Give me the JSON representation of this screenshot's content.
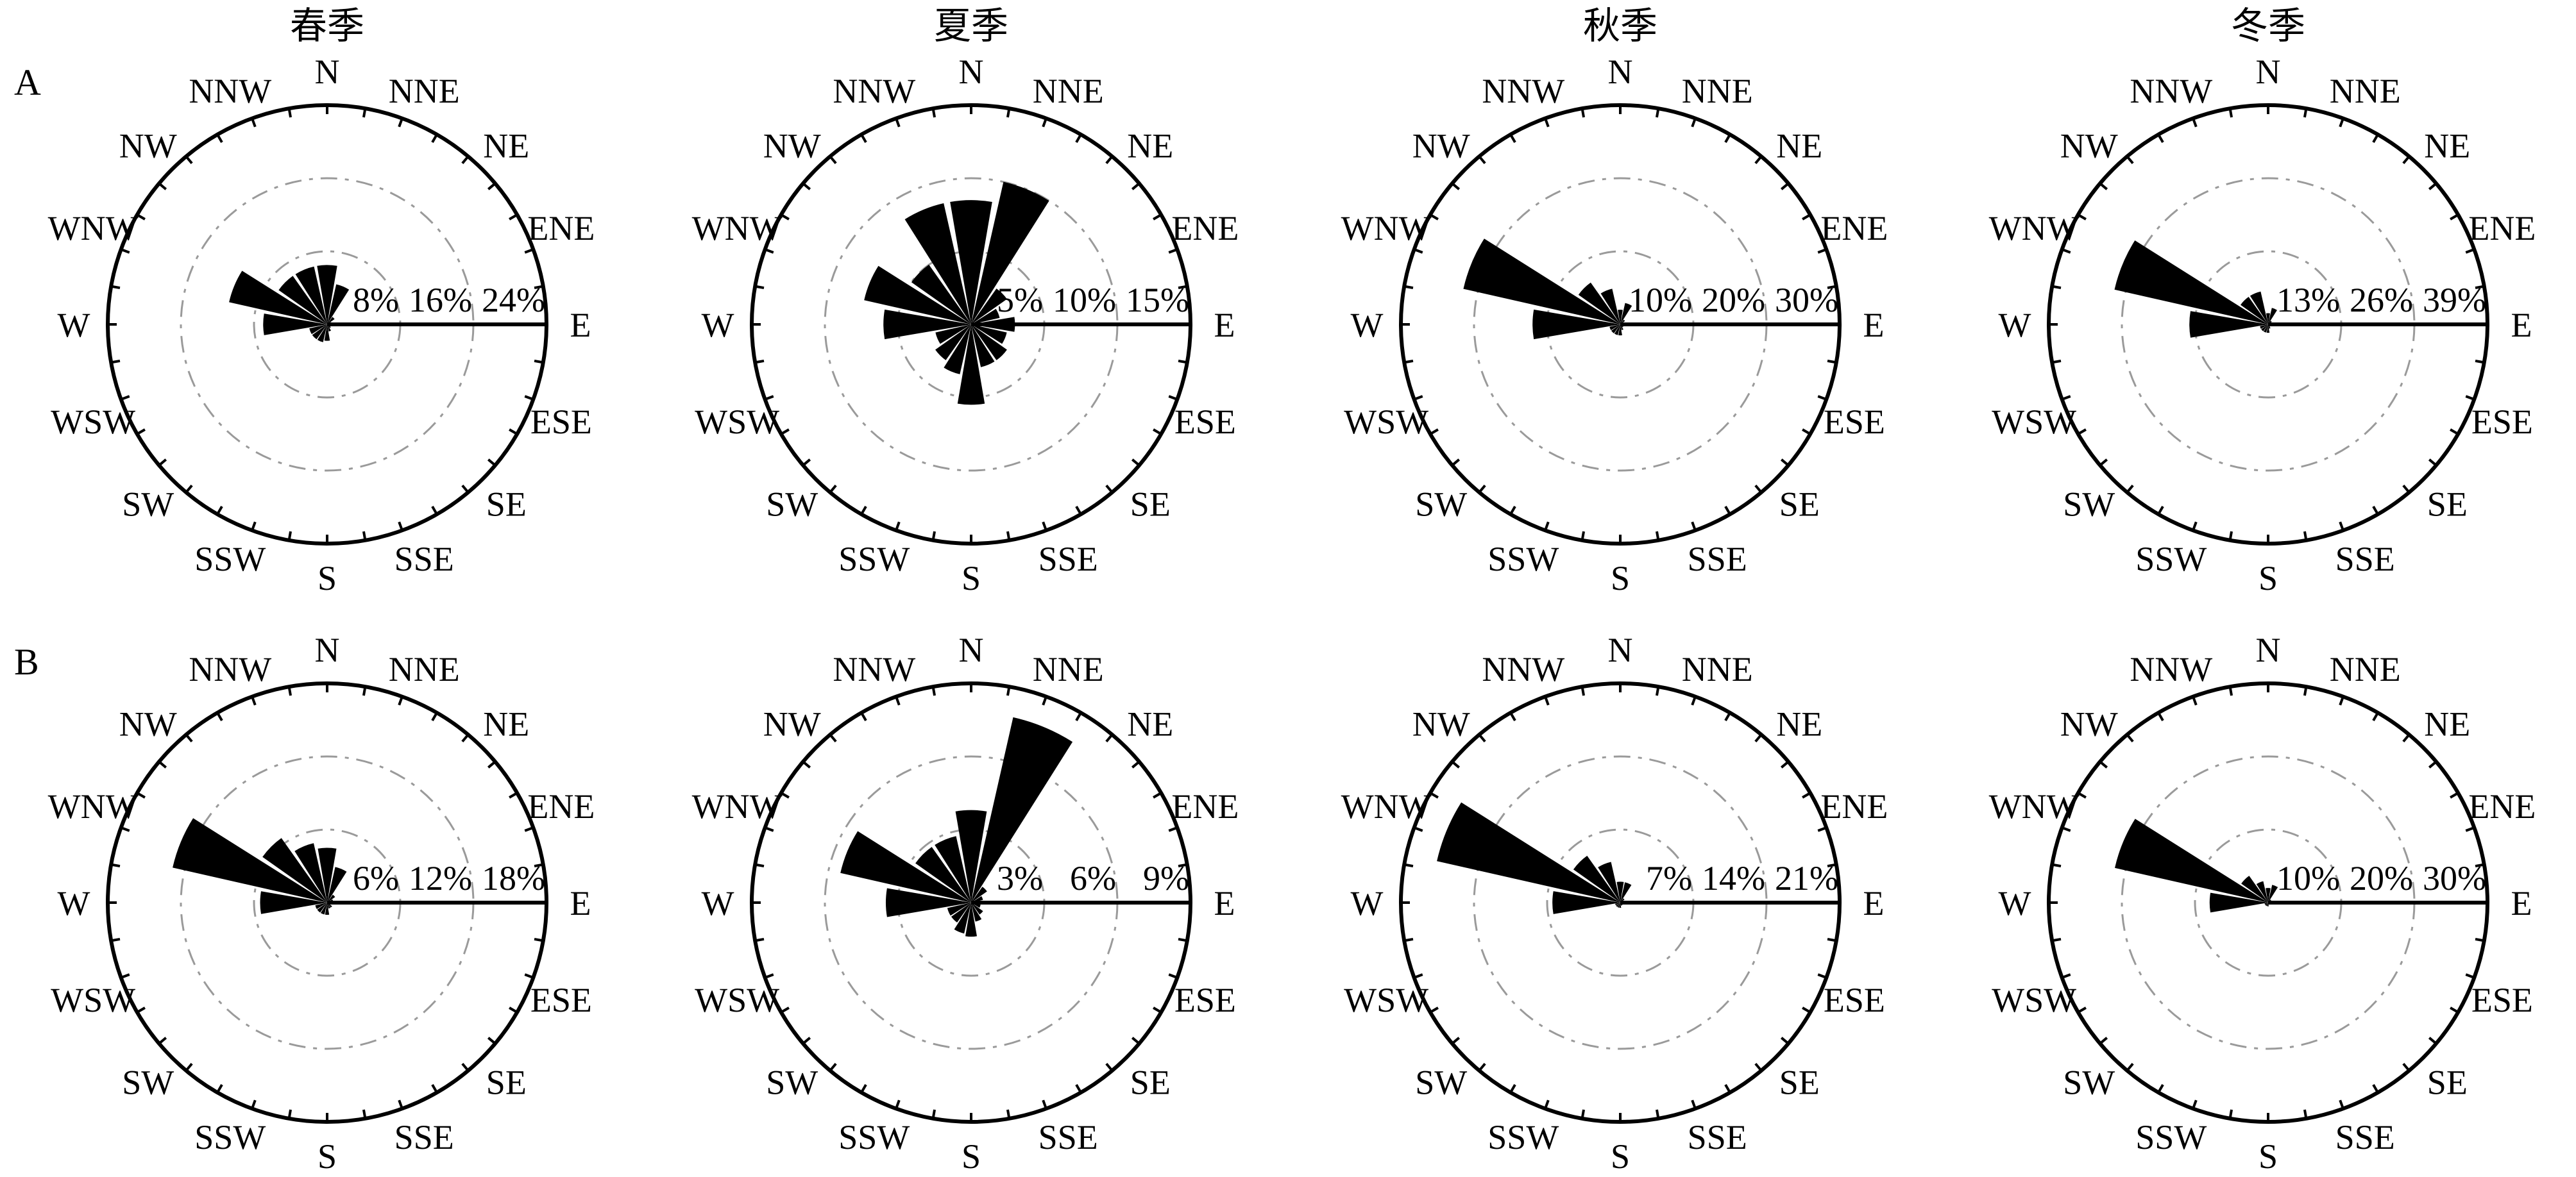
{
  "chart_data": {
    "type": "wind-rose",
    "directions": [
      "N",
      "NNE",
      "NE",
      "ENE",
      "E",
      "ESE",
      "SE",
      "SSE",
      "S",
      "SSW",
      "SW",
      "WSW",
      "W",
      "WNW",
      "NW",
      "NNW"
    ],
    "seasons": [
      "春季",
      "夏季",
      "秋季",
      "冬季"
    ],
    "panels": [
      {
        "label": "A",
        "roses": [
          {
            "season": "春季",
            "ring_labels": [
              "8%",
              "16%",
              "24%"
            ],
            "rmax": 24,
            "values": [
              6.5,
              4.5,
              1.0,
              0.5,
              0.3,
              0.3,
              0.5,
              0.8,
              1.8,
              2.0,
              2.0,
              2.0,
              7.0,
              11.0,
              6.5,
              6.5
            ]
          },
          {
            "season": "夏季",
            "ring_labels": [
              "5%",
              "10%",
              "15%"
            ],
            "rmax": 15,
            "values": [
              8.5,
              10.0,
              3.0,
              2.0,
              3.0,
              2.5,
              3.0,
              3.0,
              5.5,
              3.5,
              3.0,
              2.5,
              6.0,
              7.5,
              5.0,
              8.5
            ]
          },
          {
            "season": "秋季",
            "ring_labels": [
              "10%",
              "20%",
              "30%"
            ],
            "rmax": 30,
            "values": [
              2.0,
              3.0,
              0.8,
              0.5,
              0.3,
              0.3,
              0.5,
              0.8,
              1.5,
              1.5,
              1.5,
              1.5,
              12.0,
              22.0,
              7.0,
              5.0
            ]
          },
          {
            "season": "冬季",
            "ring_labels": [
              "13%",
              "26%",
              "39%"
            ],
            "rmax": 39,
            "values": [
              2.0,
              3.0,
              0.8,
              0.5,
              0.3,
              0.3,
              0.5,
              0.8,
              1.5,
              1.5,
              1.5,
              1.5,
              14.0,
              28.0,
              6.0,
              6.0
            ]
          }
        ]
      },
      {
        "label": "B",
        "roses": [
          {
            "season": "春季",
            "ring_labels": [
              "6%",
              "12%",
              "18%"
            ],
            "rmax": 18,
            "values": [
              4.5,
              3.0,
              0.8,
              0.5,
              0.3,
              0.3,
              0.5,
              0.5,
              1.0,
              1.0,
              1.0,
              1.0,
              5.5,
              13.0,
              6.5,
              5.0
            ]
          },
          {
            "season": "夏季",
            "ring_labels": [
              "3%",
              "6%",
              "9%"
            ],
            "rmax": 9,
            "values": [
              3.8,
              7.8,
              0.8,
              0.5,
              0.4,
              0.4,
              0.6,
              0.8,
              1.4,
              1.3,
              1.0,
              1.0,
              3.5,
              5.5,
              2.8,
              2.8
            ]
          },
          {
            "season": "秋季",
            "ring_labels": [
              "7%",
              "14%",
              "21%"
            ],
            "rmax": 21,
            "values": [
              2.0,
              2.0,
              0.5,
              0.3,
              0.3,
              0.3,
              0.3,
              0.3,
              0.5,
              0.5,
              0.5,
              0.5,
              6.5,
              18.0,
              5.5,
              4.0
            ]
          },
          {
            "season": "冬季",
            "ring_labels": [
              "10%",
              "20%",
              "30%"
            ],
            "rmax": 30,
            "values": [
              2.0,
              2.5,
              0.5,
              0.3,
              0.3,
              0.3,
              0.3,
              0.3,
              0.5,
              0.5,
              0.5,
              0.5,
              8.0,
              21.5,
              4.5,
              3.0
            ]
          }
        ]
      }
    ]
  }
}
